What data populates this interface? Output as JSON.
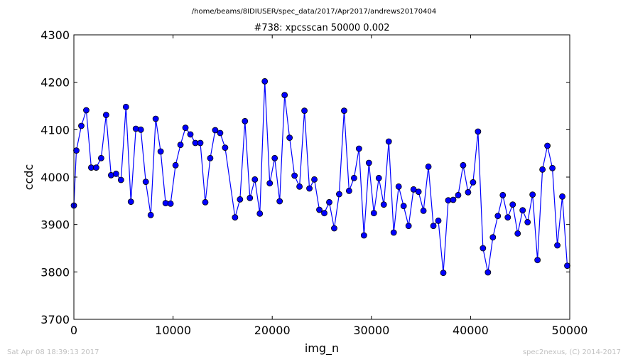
{
  "suptitle": "/home/beams/8IDIUSER/spec_data/2017/Apr2017/andrews20170404",
  "footer_left": "Sat Apr 08 18:39:13 2017",
  "footer_right": "spec2nexus, (C) 2014-2017",
  "chart_data": {
    "type": "line",
    "title": "#738: xpcsscan 50000 0.002",
    "xlabel": "img_n",
    "ylabel": "ccdc",
    "xlim": [
      0,
      50000
    ],
    "ylim": [
      3700,
      4300
    ],
    "xticks": [
      0,
      10000,
      20000,
      30000,
      40000,
      50000
    ],
    "yticks": [
      3700,
      3800,
      3900,
      4000,
      4100,
      4200,
      4300
    ],
    "grid": false,
    "line_color": "#0000ff",
    "marker_color": "#0000ff",
    "marker": "circle",
    "series": [
      {
        "x": [
          0,
          250,
          750,
          1250,
          1750,
          2250,
          2750,
          3250,
          3750,
          4250,
          4750,
          5250,
          5750,
          6250,
          6750,
          7250,
          7750,
          8250,
          8750,
          9250,
          9750,
          10250,
          10750,
          11250,
          11750,
          12250,
          12750,
          13250,
          13750,
          14250,
          14750,
          15250,
          16250,
          16750,
          17250,
          17750,
          18250,
          18750,
          19250,
          19750,
          20250,
          20750,
          21250,
          21750,
          22250,
          22750,
          23250,
          23750,
          24250,
          24750,
          25250,
          25750,
          26250,
          26750,
          27250,
          27750,
          28250,
          28750,
          29250,
          29750,
          30250,
          30750,
          31250,
          31750,
          32250,
          32750,
          33250,
          33750,
          34250,
          34750,
          35250,
          35750,
          36250,
          36750,
          37250,
          37750,
          38250,
          38750,
          39250,
          39750,
          40250,
          40750,
          41250,
          41750,
          42250,
          42750,
          43250,
          43750,
          44250,
          44750,
          45250,
          45750,
          46250,
          46750,
          47250,
          47750,
          48250,
          48750,
          49250,
          49750
        ],
        "y": [
          3940,
          4056,
          4108,
          4141,
          4020,
          4020,
          4040,
          4131,
          4004,
          4007,
          3994,
          4148,
          3948,
          4102,
          4100,
          3990,
          3920,
          4123,
          4054,
          3945,
          3944,
          4025,
          4068,
          4104,
          4090,
          4072,
          4072,
          3947,
          4040,
          4099,
          4093,
          4062,
          3915,
          3953,
          4118,
          3956,
          3995,
          3923,
          4202,
          3987,
          4040,
          3949,
          4173,
          4083,
          4003,
          3980,
          4140,
          3976,
          3995,
          3931,
          3924,
          3947,
          3892,
          3964,
          4140,
          3971,
          3998,
          4060,
          3877,
          4030,
          3924,
          3998,
          3942,
          4075,
          3883,
          3980,
          3939,
          3897,
          3974,
          3969,
          3929,
          4022,
          3897,
          3908,
          3798,
          3951,
          3952,
          3962,
          4025,
          3968,
          3989,
          4096,
          3850,
          3799,
          3873,
          3918,
          3962,
          3915,
          3942,
          3881,
          3930,
          3905,
          3963,
          3825,
          4016,
          4066,
          4019,
          3856,
          3959,
          3813
        ]
      }
    ]
  }
}
